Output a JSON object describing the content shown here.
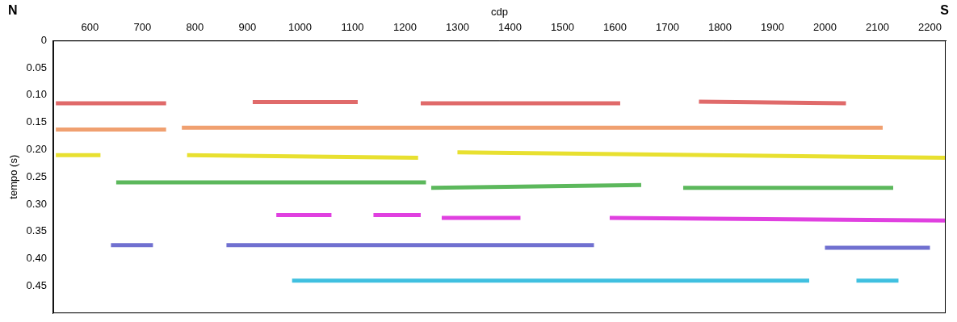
{
  "chart_data": {
    "type": "line",
    "x_label": "cdp",
    "y_label": "tempo (s)",
    "annotations": [
      {
        "text": "N"
      },
      {
        "text": "S"
      }
    ],
    "xlim": [
      530,
      2230
    ],
    "xticks": [
      600,
      700,
      800,
      900,
      1000,
      1100,
      1200,
      1300,
      1400,
      1500,
      1600,
      1700,
      1800,
      1900,
      2000,
      2100,
      2200
    ],
    "ylim": [
      0,
      0.5
    ],
    "yticks": [
      0,
      0.05,
      {
        "value": 0.1,
        "label": "0.10"
      },
      0.15,
      {
        "value": 0.2,
        "label": "0.20"
      },
      0.25,
      {
        "value": 0.3,
        "label": "0.30"
      },
      0.35,
      {
        "value": 0.4,
        "label": "0.40"
      },
      0.45
    ],
    "grid": false,
    "series": [
      {
        "color": "#e06a6a",
        "x": [
          535,
          745
        ],
        "values": [
          0.115,
          0.115
        ]
      },
      {
        "color": "#e06a6a",
        "x": [
          910,
          1110
        ],
        "values": [
          0.113,
          0.113
        ]
      },
      {
        "color": "#e06a6a",
        "x": [
          1230,
          1610
        ],
        "values": [
          0.115,
          0.115
        ]
      },
      {
        "color": "#e06a6a",
        "x": [
          1760,
          2040
        ],
        "values": [
          0.112,
          0.115
        ]
      },
      {
        "color": "#f0a070",
        "x": [
          535,
          745
        ],
        "values": [
          0.163,
          0.163
        ]
      },
      {
        "color": "#f0a070",
        "x": [
          775,
          2110
        ],
        "values": [
          0.16,
          0.16
        ]
      },
      {
        "color": "#e8e030",
        "x": [
          535,
          620
        ],
        "values": [
          0.21,
          0.21
        ]
      },
      {
        "color": "#e8e030",
        "x": [
          785,
          1225
        ],
        "values": [
          0.21,
          0.215
        ]
      },
      {
        "color": "#e8e030",
        "x": [
          1300,
          2230
        ],
        "values": [
          0.205,
          0.215
        ]
      },
      {
        "color": "#5cb85c",
        "x": [
          650,
          1240
        ],
        "values": [
          0.26,
          0.26
        ]
      },
      {
        "color": "#5cb85c",
        "x": [
          1250,
          1650
        ],
        "values": [
          0.27,
          0.265
        ]
      },
      {
        "color": "#5cb85c",
        "x": [
          1730,
          2130
        ],
        "values": [
          0.27,
          0.27
        ]
      },
      {
        "color": "#e040e0",
        "x": [
          955,
          1060
        ],
        "values": [
          0.32,
          0.32
        ]
      },
      {
        "color": "#e040e0",
        "x": [
          1140,
          1230
        ],
        "values": [
          0.32,
          0.32
        ]
      },
      {
        "color": "#e040e0",
        "x": [
          1270,
          1420
        ],
        "values": [
          0.325,
          0.325
        ]
      },
      {
        "color": "#e040e0",
        "x": [
          1590,
          2230
        ],
        "values": [
          0.325,
          0.33
        ]
      },
      {
        "color": "#7070d0",
        "x": [
          640,
          720
        ],
        "values": [
          0.375,
          0.375
        ]
      },
      {
        "color": "#7070d0",
        "x": [
          860,
          1560
        ],
        "values": [
          0.375,
          0.375
        ]
      },
      {
        "color": "#7070d0",
        "x": [
          2000,
          2200
        ],
        "values": [
          0.38,
          0.38
        ]
      },
      {
        "color": "#40c0e0",
        "x": [
          985,
          1970
        ],
        "values": [
          0.44,
          0.44
        ]
      },
      {
        "color": "#40c0e0",
        "x": [
          2060,
          2140
        ],
        "values": [
          0.44,
          0.44
        ]
      }
    ]
  }
}
